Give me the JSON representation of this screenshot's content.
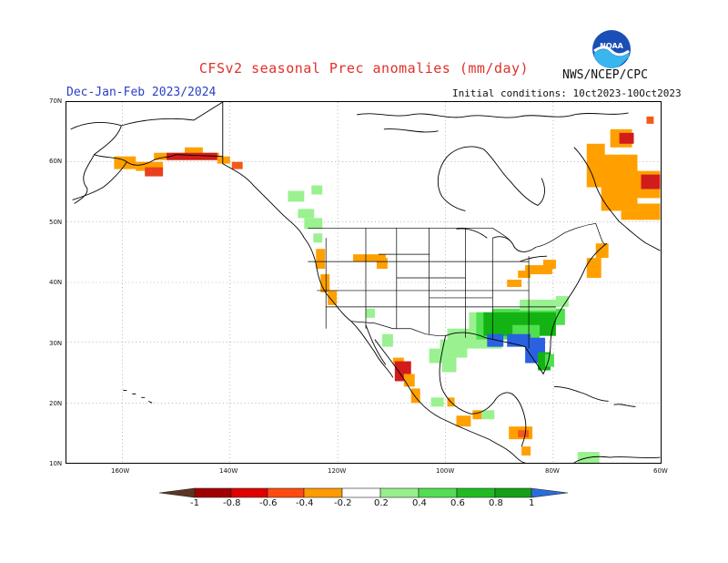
{
  "title": "CFSv2 seasonal Prec anomalies (mm/day)",
  "period": "Dec-Jan-Feb 2023/2024",
  "agency": "NWS/NCEP/CPC",
  "initial_conditions": "Initial conditions: 10ct2023-10Oct2023",
  "logo_text": "NOAA",
  "lat_ticks": [
    "70N",
    "60N",
    "50N",
    "40N",
    "30N",
    "20N",
    "10N"
  ],
  "lon_ticks": [
    "160W",
    "140W",
    "120W",
    "100W",
    "80W",
    "60W"
  ],
  "colorbar": {
    "labels": [
      "-1",
      "-0.8",
      "-0.6",
      "-0.4",
      "-0.2",
      "0.2",
      "0.4",
      "0.6",
      "0.8",
      "1"
    ],
    "colors": [
      "#5c3423",
      "#a00000",
      "#e00000",
      "#ff4a10",
      "#ff9a00",
      "#ffffff",
      "#97ef8c",
      "#52dd52",
      "#20bb20",
      "#14a014",
      "#2b6cdb"
    ]
  },
  "anomaly_colors": {
    "dry_strong": "#d21c1c",
    "dry_medium": "#f25a1a",
    "dry_light": "#ffa000",
    "wet_light": "#9af190",
    "wet_medium": "#4ee04e",
    "wet_strong": "#13b313",
    "wet_max": "#2a61e0"
  }
}
